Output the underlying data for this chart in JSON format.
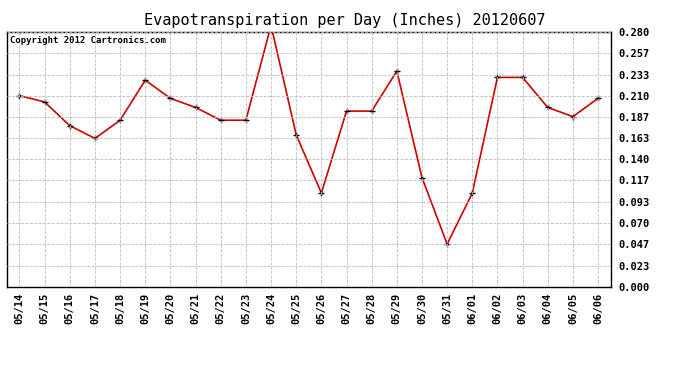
{
  "title": "Evapotranspiration per Day (Inches) 20120607",
  "copyright": "Copyright 2012 Cartronics.com",
  "x_labels": [
    "05/14",
    "05/15",
    "05/16",
    "05/17",
    "05/18",
    "05/19",
    "05/20",
    "05/21",
    "05/22",
    "05/23",
    "05/24",
    "05/25",
    "05/26",
    "05/27",
    "05/28",
    "05/29",
    "05/30",
    "05/31",
    "06/01",
    "06/02",
    "06/03",
    "06/04",
    "06/05",
    "06/06"
  ],
  "y_values": [
    0.21,
    0.203,
    0.177,
    0.163,
    0.183,
    0.227,
    0.207,
    0.197,
    0.183,
    0.183,
    0.287,
    0.167,
    0.103,
    0.193,
    0.193,
    0.237,
    0.12,
    0.047,
    0.103,
    0.23,
    0.23,
    0.197,
    0.187,
    0.207
  ],
  "y_ticks": [
    0.0,
    0.023,
    0.047,
    0.07,
    0.093,
    0.117,
    0.14,
    0.163,
    0.187,
    0.21,
    0.233,
    0.257,
    0.28
  ],
  "line_color": "#cc0000",
  "marker": "+",
  "marker_size": 4,
  "marker_color": "#000000",
  "background_color": "#ffffff",
  "plot_bg_color": "#ffffff",
  "grid_color": "#bbbbbb",
  "grid_style": "--",
  "title_fontsize": 11,
  "copyright_fontsize": 6.5,
  "tick_fontsize": 7.5,
  "ylim": [
    0.0,
    0.28
  ]
}
